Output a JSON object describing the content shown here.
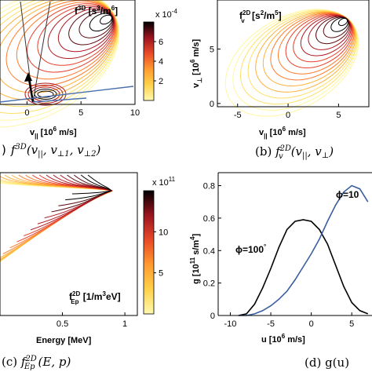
{
  "colors": {
    "frame": "#000000",
    "series_black": "#000000",
    "series_blue": "#3a5fa0",
    "colormap": [
      "#fff6a0",
      "#ffe066",
      "#ffb13a",
      "#ff7a2a",
      "#e8402a",
      "#b01820",
      "#5a0a10",
      "#000000"
    ]
  },
  "chart_data": [
    {
      "type": "heatmap",
      "panel": "a",
      "inset_label": "f3D [s3/m6]",
      "colorbar_scale": "x 10-4",
      "colorbar_ticks": [
        "6",
        "4",
        "2"
      ],
      "colorbar_range": [
        0,
        8
      ],
      "x_ticks": [
        "0",
        "5",
        "10"
      ],
      "xlim": [
        -2.5,
        10
      ],
      "xlabel": "v|| [106 m/s]",
      "caption": "f3D(v||, v⊥1, v⊥2)"
    },
    {
      "type": "heatmap",
      "panel": "b",
      "inset_label": "fv2D [s2/m5]",
      "x_ticks": [
        "-5",
        "0",
        "5"
      ],
      "y_ticks": [
        "5",
        "0"
      ],
      "xlim": [
        -7,
        8
      ],
      "ylim": [
        -0.3,
        9.5
      ],
      "xlabel": "v|| [106 m/s]",
      "ylabel": "v⊥ [106 m/s]",
      "caption": "(b) fv2D(v||, v⊥)"
    },
    {
      "type": "heatmap",
      "panel": "c",
      "inset_label": "fEp2D [1/m3eV]",
      "colorbar_scale": "x 1011",
      "colorbar_ticks": [
        "10",
        "5"
      ],
      "colorbar_range": [
        0,
        15
      ],
      "x_ticks": [
        "0.5",
        "1"
      ],
      "xlim": [
        0,
        1.1
      ],
      "xlabel": "Energy [MeV]",
      "caption": "(c) fEp2D(E, p)"
    },
    {
      "type": "line",
      "panel": "d",
      "x_ticks": [
        "-10",
        "-5",
        "0",
        "5"
      ],
      "y_ticks": [
        "0.8",
        "0.6",
        "0.4",
        "0.2",
        "0"
      ],
      "xlim": [
        -11.5,
        7.5
      ],
      "ylim": [
        0,
        0.88
      ],
      "xlabel": "u [106 m/s]",
      "ylabel": "g [1011 s/m4]",
      "caption": "(d) g(u)",
      "series": [
        {
          "name": "ϕ=100°",
          "x": [
            -9,
            -8,
            -7,
            -6,
            -5,
            -4,
            -3,
            -2,
            -1,
            0,
            1,
            2,
            3,
            4,
            5,
            6,
            7
          ],
          "y": [
            0,
            0.01,
            0.07,
            0.17,
            0.29,
            0.42,
            0.53,
            0.58,
            0.59,
            0.58,
            0.53,
            0.44,
            0.31,
            0.18,
            0.08,
            0.03,
            0.01
          ]
        },
        {
          "name": "ϕ=10",
          "x": [
            -9,
            -8,
            -7,
            -6,
            -5,
            -4,
            -3,
            -2,
            -1,
            0,
            1,
            2,
            3,
            4,
            5,
            6,
            7
          ],
          "y": [
            0,
            0.0,
            0.01,
            0.03,
            0.06,
            0.1,
            0.15,
            0.22,
            0.3,
            0.38,
            0.47,
            0.58,
            0.68,
            0.76,
            0.8,
            0.78,
            0.7
          ]
        }
      ]
    }
  ],
  "labels": {
    "a_f": "f",
    "a_sup": "3D",
    "a_unit": " [s",
    "a_u1": "3",
    "a_mid": "/m",
    "a_u2": "6",
    "a_end": "]",
    "a_cb_x": "x 10",
    "a_cb_exp": "-4",
    "a_xl1": "v",
    "a_xl_sub": "||",
    "a_xl2": " [10",
    "a_xl_exp": "6",
    "a_xl3": " m/s]",
    "a_cap": "f",
    "a_cap_sup": "3D",
    "a_cap_rest": "(v",
    "a_cap_s1": "||",
    "a_cap_c1": ", v",
    "a_cap_s2": "⊥1",
    "a_cap_c2": ", v",
    "a_cap_s3": "⊥2",
    "a_cap_end": ")",
    "b_f": "f",
    "b_sup": "2D",
    "b_sub": "v",
    "b_unit": " [s",
    "b_u1": "2",
    "b_mid": "/m",
    "b_u2": "5",
    "b_end": "]",
    "b_yl1": "v",
    "b_yl_sub": "⊥",
    "b_yl2": " [10",
    "b_yl_exp": "6",
    "b_yl3": " m/s]",
    "b_cap_pre": "(b) ",
    "b_cap_f": "f",
    "b_cap_sup": "2D",
    "b_cap_sub": "v",
    "b_cap_rest": "(v",
    "b_cap_s1": "||",
    "b_cap_c1": ", v",
    "b_cap_s2": "⊥",
    "b_cap_end": ")",
    "c_f": "f",
    "c_sup": "2D",
    "c_sub": "Ep",
    "c_unit": " [1/m",
    "c_u1": "3",
    "c_end": "eV]",
    "c_cb_x": "x 10",
    "c_cb_exp": "11",
    "c_xl": "Energy [MeV]",
    "c_cap_pre": "(c) ",
    "c_cap_f": "f",
    "c_cap_sup": "2D",
    "c_cap_sub": "Ep",
    "c_cap_rest": "(E, p)",
    "d_yl1": "g [10",
    "d_yl_exp": "11",
    "d_yl2": " s/m",
    "d_yl_exp2": "4",
    "d_yl3": "]",
    "d_xl1": "u [10",
    "d_xl_exp": "6",
    "d_xl2": " m/s]",
    "d_phi100": "ϕ=100",
    "d_deg": "°",
    "d_phi10": "ϕ=10",
    "d_cap": "(d) g(u)"
  }
}
